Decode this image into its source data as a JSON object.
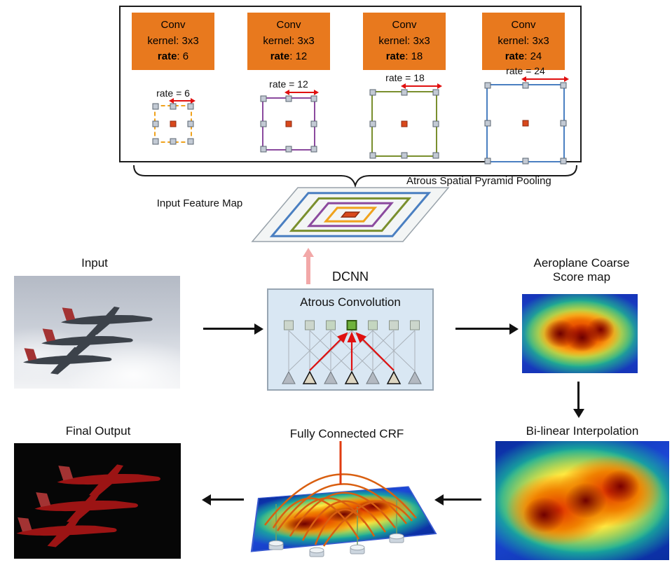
{
  "colors": {
    "conv_block_bg": "#E8791E",
    "rate6_border": "#F0A21C",
    "rate12_border": "#8B4A9E",
    "rate18_border": "#7A8F2E",
    "rate24_border": "#4A7FC1",
    "center_cell": "#D8481C",
    "red_arrow": "#E01010",
    "pink_arrow": "#F2A8A8",
    "dcnn_box_bg": "#D9E7F3"
  },
  "aspp": {
    "title": "Atrous Spatial Pyramid Pooling",
    "blocks": [
      {
        "title": "Conv",
        "kernel": "kernel: 3x3",
        "rate_word": "rate",
        "rate_value": ": 6",
        "grid_label": "rate = 6"
      },
      {
        "title": "Conv",
        "kernel": "kernel: 3x3",
        "rate_word": "rate",
        "rate_value": ": 12",
        "grid_label": "rate = 12"
      },
      {
        "title": "Conv",
        "kernel": "kernel: 3x3",
        "rate_word": "rate",
        "rate_value": ": 18",
        "grid_label": "rate = 18"
      },
      {
        "title": "Conv",
        "kernel": "kernel: 3x3",
        "rate_word": "rate",
        "rate_value": ": 24",
        "grid_label": "rate = 24"
      }
    ]
  },
  "feature_map": {
    "label": "Input Feature Map"
  },
  "pipeline": {
    "input_label": "Input",
    "dcnn_label": "DCNN",
    "dcnn_box_title": "Atrous Convolution",
    "coarse_line1": "Aeroplane Coarse",
    "coarse_line2": "Score map",
    "bilinear_label": "Bi-linear Interpolation",
    "crf_label": "Fully Connected CRF",
    "final_label": "Final Output"
  }
}
